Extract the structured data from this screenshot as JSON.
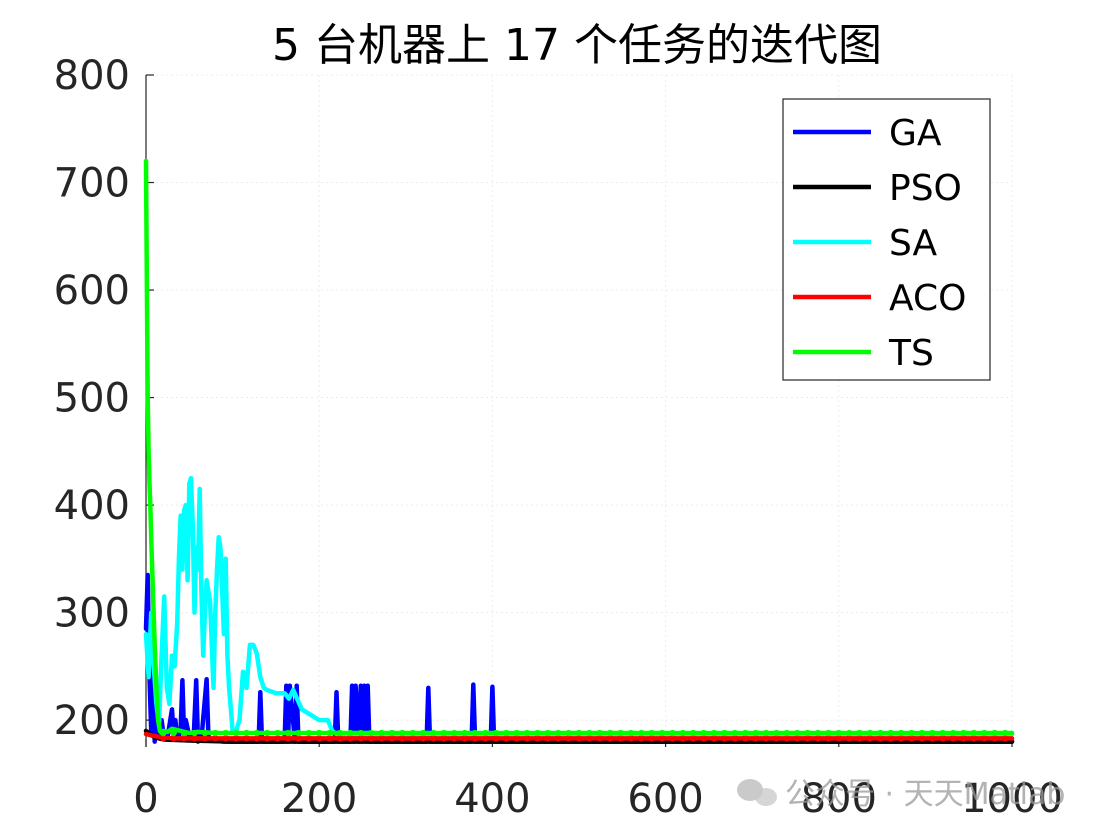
{
  "chart_data": {
    "type": "line",
    "title": "5 台机器上 17 个任务的迭代图",
    "xlabel": "",
    "ylabel": "",
    "xlim": [
      0,
      1000
    ],
    "ylim": [
      175,
      800
    ],
    "xticks": [
      0,
      200,
      400,
      600,
      800,
      1000
    ],
    "yticks": [
      200,
      300,
      400,
      500,
      600,
      700,
      800
    ],
    "grid": true,
    "legend_position": "top-right",
    "series": [
      {
        "name": "GA",
        "color": "#0000ff",
        "x": [
          0,
          2,
          4,
          6,
          8,
          10,
          12,
          14,
          16,
          18,
          20,
          25,
          30,
          32,
          34,
          36,
          40,
          42,
          44,
          46,
          50,
          55,
          58,
          60,
          62,
          64,
          70,
          72,
          74,
          76,
          80,
          90,
          100,
          110,
          130,
          132,
          134,
          136,
          160,
          162,
          164,
          166,
          172,
          174,
          176,
          178,
          218,
          220,
          222,
          236,
          238,
          240,
          242,
          246,
          248,
          250,
          252,
          254,
          256,
          258,
          260,
          324,
          326,
          328,
          376,
          378,
          380,
          398,
          400,
          402,
          410,
          500,
          600,
          700,
          800,
          900,
          1000
        ],
        "values": [
          285,
          335,
          240,
          190,
          250,
          180,
          230,
          190,
          185,
          200,
          188,
          185,
          210,
          185,
          200,
          182,
          190,
          237,
          185,
          200,
          185,
          182,
          237,
          180,
          185,
          182,
          238,
          185,
          183,
          182,
          181,
          180,
          180,
          180,
          180,
          226,
          180,
          180,
          180,
          232,
          180,
          232,
          180,
          232,
          180,
          180,
          180,
          226,
          180,
          180,
          232,
          180,
          232,
          180,
          232,
          180,
          232,
          180,
          232,
          180,
          180,
          180,
          230,
          180,
          180,
          233,
          180,
          180,
          231,
          180,
          180,
          180,
          180,
          180,
          180,
          180,
          180
        ]
      },
      {
        "name": "PSO",
        "color": "#000000",
        "x": [
          0,
          10,
          20,
          50,
          100,
          200,
          400,
          600,
          800,
          1000
        ],
        "values": [
          190,
          184,
          182,
          181,
          180,
          180,
          180,
          180,
          180,
          180
        ]
      },
      {
        "name": "SA",
        "color": "#00ffff",
        "x": [
          0,
          3,
          6,
          9,
          12,
          15,
          18,
          21,
          24,
          27,
          30,
          33,
          36,
          38,
          40,
          42,
          44,
          46,
          48,
          50,
          52,
          54,
          56,
          58,
          60,
          62,
          64,
          66,
          68,
          70,
          72,
          74,
          76,
          78,
          80,
          82,
          84,
          86,
          88,
          90,
          92,
          94,
          96,
          98,
          100,
          104,
          108,
          112,
          116,
          120,
          124,
          128,
          132,
          136,
          140,
          150,
          160,
          165,
          170,
          180,
          190,
          200,
          210,
          215,
          220,
          240,
          300,
          400,
          500,
          600,
          700,
          800,
          900,
          1000
        ],
        "values": [
          280,
          240,
          300,
          250,
          215,
          195,
          260,
          315,
          230,
          215,
          260,
          250,
          290,
          350,
          390,
          340,
          395,
          400,
          330,
          420,
          425,
          380,
          300,
          360,
          340,
          415,
          320,
          260,
          300,
          330,
          320,
          310,
          270,
          230,
          300,
          340,
          370,
          360,
          320,
          280,
          350,
          260,
          230,
          210,
          190,
          190,
          200,
          245,
          230,
          270,
          270,
          262,
          240,
          230,
          228,
          225,
          225,
          220,
          228,
          210,
          205,
          200,
          200,
          190,
          187,
          187,
          187,
          187,
          187,
          187,
          187,
          187,
          187,
          187
        ]
      },
      {
        "name": "ACO",
        "color": "#ff0000",
        "x": [
          0,
          10,
          20,
          30,
          50,
          100,
          200,
          300,
          400,
          500,
          600,
          700,
          800,
          900,
          1000
        ],
        "values": [
          187,
          185,
          184,
          183,
          183,
          183,
          183,
          183,
          183,
          183,
          183,
          183,
          183,
          183,
          183
        ]
      },
      {
        "name": "TS",
        "color": "#00ff00",
        "x": [
          0,
          1,
          2,
          3,
          4,
          5,
          6,
          8,
          10,
          12,
          14,
          16,
          18,
          20,
          25,
          30,
          40,
          50,
          60,
          80,
          100,
          200,
          300,
          400,
          500,
          600,
          700,
          800,
          900,
          1000
        ],
        "values": [
          720,
          600,
          500,
          450,
          420,
          400,
          370,
          320,
          270,
          230,
          200,
          190,
          188,
          190,
          189,
          192,
          190,
          188,
          189,
          188,
          188,
          188,
          188,
          188,
          188,
          188,
          188,
          188,
          188,
          188
        ]
      }
    ]
  },
  "watermark": {
    "text": "公众号 · 天天Matlab"
  }
}
